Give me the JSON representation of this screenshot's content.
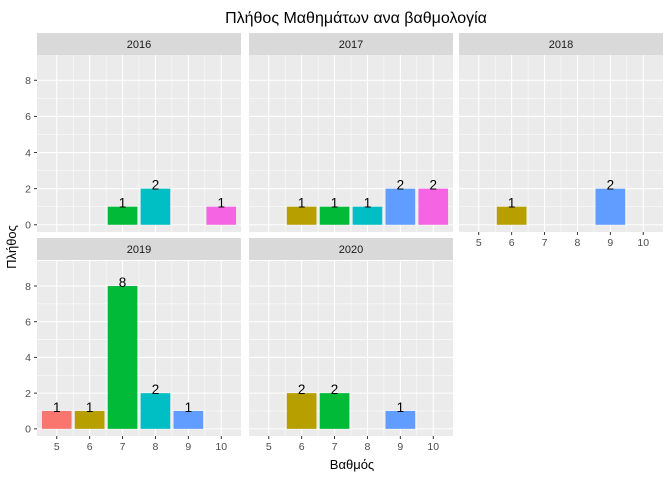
{
  "chart_data": {
    "type": "bar",
    "title": "Πλήθος Μαθημάτων ανα βαθμολογία",
    "xlabel": "Βαθμός",
    "ylabel": "Πλήθος",
    "x_ticks": [
      "5",
      "6",
      "7",
      "8",
      "9",
      "10"
    ],
    "y_ticks": [
      "0",
      "2",
      "4",
      "6",
      "8"
    ],
    "ylim": [
      -0.4,
      9.4
    ],
    "grid": true,
    "legend": "none",
    "fill_by_grade": {
      "5": "#F8766D",
      "6": "#B79F00",
      "7": "#00BA38",
      "8": "#00BFC4",
      "9": "#619CFF",
      "10": "#F564E3"
    },
    "facets": [
      {
        "label": "2016",
        "bars": [
          {
            "x": 7,
            "y": 1
          },
          {
            "x": 8,
            "y": 2
          },
          {
            "x": 10,
            "y": 1
          }
        ]
      },
      {
        "label": "2017",
        "bars": [
          {
            "x": 6,
            "y": 1
          },
          {
            "x": 7,
            "y": 1
          },
          {
            "x": 8,
            "y": 1
          },
          {
            "x": 9,
            "y": 2
          },
          {
            "x": 10,
            "y": 2
          }
        ]
      },
      {
        "label": "2018",
        "bars": [
          {
            "x": 6,
            "y": 1
          },
          {
            "x": 9,
            "y": 2
          }
        ]
      },
      {
        "label": "2019",
        "bars": [
          {
            "x": 5,
            "y": 1
          },
          {
            "x": 6,
            "y": 1
          },
          {
            "x": 7,
            "y": 8
          },
          {
            "x": 8,
            "y": 2
          },
          {
            "x": 9,
            "y": 1
          }
        ]
      },
      {
        "label": "2020",
        "bars": [
          {
            "x": 6,
            "y": 2
          },
          {
            "x": 7,
            "y": 2
          },
          {
            "x": 9,
            "y": 1
          }
        ]
      }
    ]
  }
}
